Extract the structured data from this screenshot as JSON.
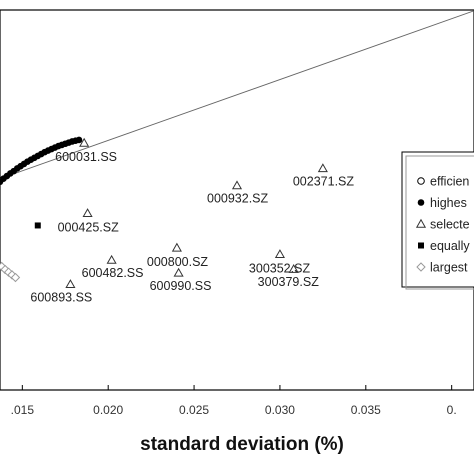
{
  "chart_data": {
    "type": "scatter",
    "xlabel": "standard deviation (%)",
    "ylabel": "",
    "title": "",
    "xlim": [
      0.0137,
      0.0413
    ],
    "ylim": [
      0,
      100
    ],
    "x_ticks": [
      {
        "value": 0.015,
        "label": ".015"
      },
      {
        "value": 0.02,
        "label": "0.020"
      },
      {
        "value": 0.025,
        "label": "0.025"
      },
      {
        "value": 0.03,
        "label": "0.030"
      },
      {
        "value": 0.035,
        "label": "0.035"
      },
      {
        "value": 0.04,
        "label": "0."
      }
    ],
    "tangent_line": {
      "x1": 0.0137,
      "y1": 55.6,
      "x2": 0.0413,
      "y2": 99.8
    },
    "legend": {
      "position": "right",
      "entries": [
        {
          "marker": "circle-open",
          "label": "efficien"
        },
        {
          "marker": "circle-filled",
          "label": "highes"
        },
        {
          "marker": "triangle-open",
          "label": "selecte"
        },
        {
          "marker": "square-filled",
          "label": "equally"
        },
        {
          "marker": "diamond-open",
          "label": "largest"
        }
      ]
    },
    "series": [
      {
        "marker": "circle-filled",
        "points": [
          {
            "x": 0.0137,
            "y": 54.8
          },
          {
            "x": 0.0139,
            "y": 55.6
          },
          {
            "x": 0.0141,
            "y": 56.3
          },
          {
            "x": 0.0143,
            "y": 57.0
          },
          {
            "x": 0.0145,
            "y": 57.6
          },
          {
            "x": 0.0147,
            "y": 58.3
          },
          {
            "x": 0.0149,
            "y": 58.9
          },
          {
            "x": 0.0151,
            "y": 59.5
          },
          {
            "x": 0.0153,
            "y": 60.1
          },
          {
            "x": 0.0155,
            "y": 60.6
          },
          {
            "x": 0.0157,
            "y": 61.1
          },
          {
            "x": 0.0159,
            "y": 61.6
          },
          {
            "x": 0.0161,
            "y": 62.1
          },
          {
            "x": 0.0163,
            "y": 62.6
          },
          {
            "x": 0.0165,
            "y": 63.0
          },
          {
            "x": 0.0167,
            "y": 63.4
          },
          {
            "x": 0.0169,
            "y": 63.8
          },
          {
            "x": 0.0171,
            "y": 64.2
          },
          {
            "x": 0.0173,
            "y": 64.5
          },
          {
            "x": 0.0175,
            "y": 64.8
          },
          {
            "x": 0.0177,
            "y": 65.1
          },
          {
            "x": 0.0179,
            "y": 65.4
          },
          {
            "x": 0.0181,
            "y": 65.6
          },
          {
            "x": 0.0183,
            "y": 65.8
          }
        ]
      },
      {
        "marker": "diamond-open",
        "points": [
          {
            "x": 0.0138,
            "y": 32.5
          },
          {
            "x": 0.014,
            "y": 31.7
          },
          {
            "x": 0.0142,
            "y": 31.0
          },
          {
            "x": 0.0144,
            "y": 30.3
          },
          {
            "x": 0.0146,
            "y": 29.6
          }
        ]
      },
      {
        "marker": "square-filled",
        "points": [
          {
            "x": 0.0159,
            "y": 43.3
          }
        ]
      },
      {
        "marker": "triangle-open",
        "points": [
          {
            "x": 0.0186,
            "y": 65.0,
            "label": "600031.SS"
          },
          {
            "x": 0.0188,
            "y": 46.5,
            "label": "000425.SZ"
          },
          {
            "x": 0.0275,
            "y": 53.8,
            "label": "000932.SZ"
          },
          {
            "x": 0.0325,
            "y": 58.3,
            "label": "002371.SZ"
          },
          {
            "x": 0.0202,
            "y": 34.2,
            "label": "600482.SS"
          },
          {
            "x": 0.0178,
            "y": 27.8,
            "label": "600893.SS"
          },
          {
            "x": 0.024,
            "y": 37.4,
            "label": "000800.SZ"
          },
          {
            "x": 0.0241,
            "y": 30.8,
            "label": "600990.SS"
          },
          {
            "x": 0.03,
            "y": 35.7,
            "label": "300352.SZ"
          },
          {
            "x": 0.0308,
            "y": 31.8,
            "label": "300379.SZ"
          }
        ]
      }
    ]
  }
}
